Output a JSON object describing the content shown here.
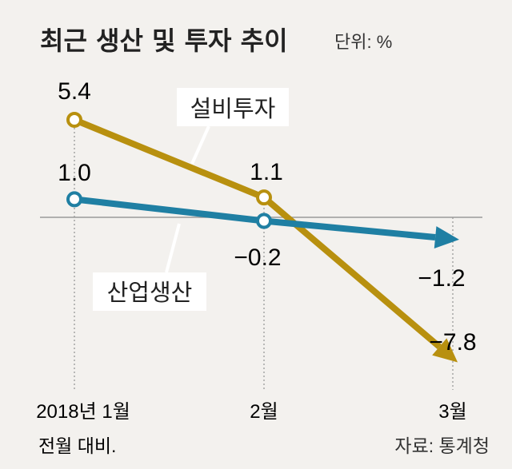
{
  "chart_data": {
    "type": "line",
    "title": "최근 생산 및 투자 추이",
    "unit_label": "단위: %",
    "categories": [
      "2018년 1월",
      "2월",
      "3월"
    ],
    "series": [
      {
        "name": "설비투자",
        "values": [
          5.4,
          1.1,
          -7.8
        ],
        "color": "#b8900f"
      },
      {
        "name": "산업생산",
        "values": [
          1.0,
          -0.2,
          -1.2
        ],
        "color": "#1f7fa3"
      }
    ],
    "value_labels": {
      "설비투자": [
        "5.4",
        "1.1",
        "−7.8"
      ],
      "산업생산": [
        "1.0",
        "−0.2",
        "−1.2"
      ]
    },
    "ylim": [
      -9,
      7
    ],
    "grid": false
  },
  "footnote": "전월 대비.",
  "source": "자료: 통계청"
}
